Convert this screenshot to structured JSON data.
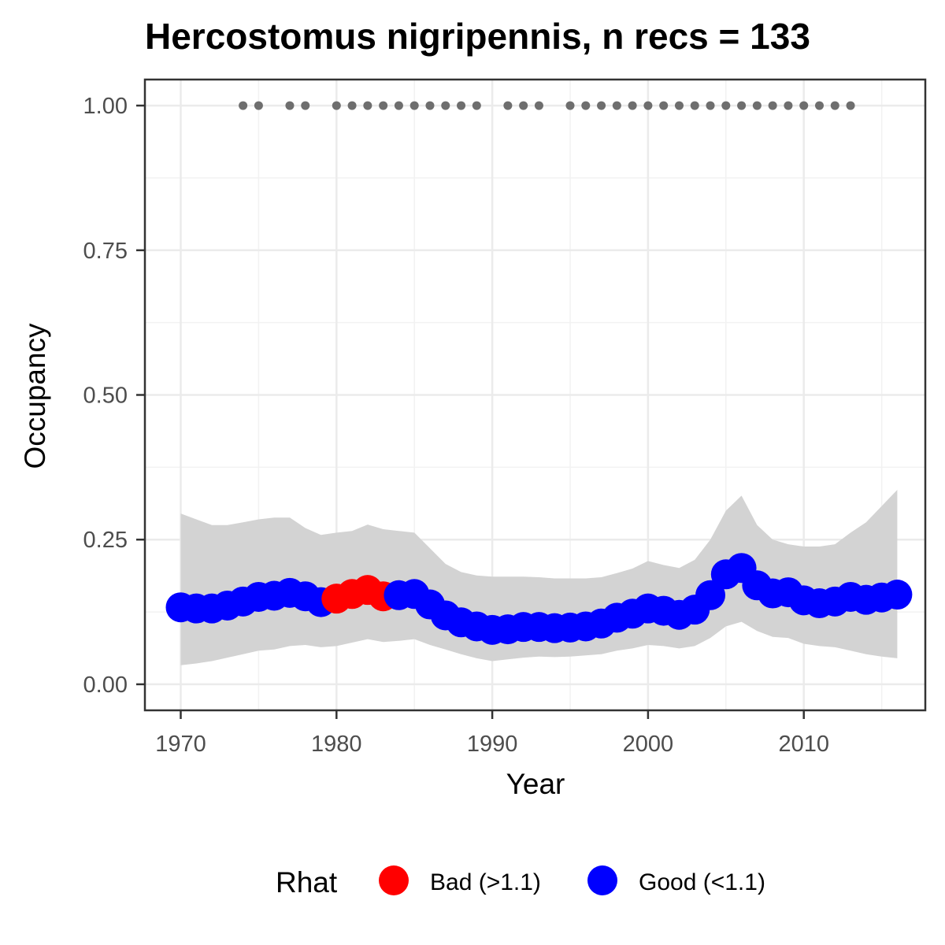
{
  "chart_data": {
    "type": "line",
    "title": "Hercostomus nigripennis, n recs = 133",
    "xlabel": "Year",
    "ylabel": "Occupancy",
    "xlim": [
      1967.7,
      2017.8
    ],
    "ylim": [
      -0.045,
      1.045
    ],
    "x_ticks": [
      1970,
      1980,
      1990,
      2000,
      2010
    ],
    "x_tick_labels": [
      "1970",
      "1980",
      "1990",
      "2000",
      "2010"
    ],
    "y_ticks": [
      0,
      0.25,
      0.5,
      0.75,
      1
    ],
    "y_tick_labels": [
      "0.00",
      "0.25",
      "0.50",
      "0.75",
      "1.00"
    ],
    "grid": true,
    "legend": {
      "position": "bottom",
      "title": "Rhat",
      "entries": [
        {
          "label": "Bad (>1.1)",
          "color": "#ff0000"
        },
        {
          "label": "Good (<1.1)",
          "color": "#0000ff"
        }
      ]
    },
    "colors": {
      "bad": "#ff0000",
      "good": "#0000ff",
      "ribbon": "#d3d3d3",
      "records": "#6e6e6e"
    },
    "series": [
      {
        "x": [
          1970,
          1971,
          1972,
          1973,
          1974,
          1975,
          1976,
          1977,
          1978,
          1979,
          1980,
          1981,
          1982,
          1983,
          1984,
          1985,
          1986,
          1987,
          1988,
          1989,
          1990,
          1991,
          1992,
          1993,
          1994,
          1995,
          1996,
          1997,
          1998,
          1999,
          2000,
          2001,
          2002,
          2003,
          2004,
          2005,
          2006,
          2007,
          2008,
          2009,
          2010,
          2011,
          2012,
          2013,
          2014,
          2015,
          2016
        ],
        "y": [
          0.133,
          0.131,
          0.131,
          0.136,
          0.143,
          0.151,
          0.153,
          0.158,
          0.152,
          0.142,
          0.148,
          0.156,
          0.163,
          0.152,
          0.154,
          0.156,
          0.138,
          0.119,
          0.107,
          0.1,
          0.094,
          0.095,
          0.099,
          0.099,
          0.097,
          0.098,
          0.1,
          0.105,
          0.115,
          0.122,
          0.131,
          0.127,
          0.12,
          0.129,
          0.154,
          0.19,
          0.201,
          0.171,
          0.157,
          0.159,
          0.145,
          0.14,
          0.143,
          0.151,
          0.146,
          0.15,
          0.155
        ],
        "lower": [
          0.033,
          0.036,
          0.04,
          0.046,
          0.052,
          0.058,
          0.06,
          0.066,
          0.068,
          0.064,
          0.066,
          0.072,
          0.078,
          0.073,
          0.075,
          0.078,
          0.068,
          0.06,
          0.052,
          0.045,
          0.04,
          0.043,
          0.046,
          0.048,
          0.047,
          0.048,
          0.05,
          0.052,
          0.058,
          0.062,
          0.068,
          0.066,
          0.062,
          0.066,
          0.08,
          0.1,
          0.108,
          0.092,
          0.082,
          0.08,
          0.07,
          0.066,
          0.064,
          0.058,
          0.052,
          0.048,
          0.045
        ],
        "upper": [
          0.295,
          0.285,
          0.275,
          0.275,
          0.28,
          0.285,
          0.288,
          0.288,
          0.27,
          0.258,
          0.262,
          0.265,
          0.276,
          0.268,
          0.265,
          0.262,
          0.235,
          0.208,
          0.194,
          0.188,
          0.186,
          0.186,
          0.186,
          0.185,
          0.183,
          0.183,
          0.183,
          0.185,
          0.192,
          0.2,
          0.213,
          0.206,
          0.201,
          0.215,
          0.25,
          0.3,
          0.326,
          0.275,
          0.25,
          0.242,
          0.238,
          0.238,
          0.242,
          0.262,
          0.28,
          0.308,
          0.336
        ],
        "rhat_bad": [
          false,
          false,
          false,
          false,
          false,
          false,
          false,
          false,
          false,
          false,
          true,
          true,
          true,
          true,
          false,
          false,
          false,
          false,
          false,
          false,
          false,
          false,
          false,
          false,
          false,
          false,
          false,
          false,
          false,
          false,
          false,
          false,
          false,
          false,
          false,
          false,
          false,
          false,
          false,
          false,
          false,
          false,
          false,
          false,
          false,
          false,
          false
        ]
      }
    ],
    "record_years": [
      1974,
      1975,
      1977,
      1978,
      1980,
      1981,
      1982,
      1983,
      1984,
      1985,
      1986,
      1987,
      1988,
      1989,
      1991,
      1992,
      1993,
      1995,
      1996,
      1997,
      1998,
      1999,
      2000,
      2001,
      2002,
      2003,
      2004,
      2005,
      2006,
      2007,
      2008,
      2009,
      2010,
      2011,
      2012,
      2013
    ],
    "record_value": 1.0
  }
}
